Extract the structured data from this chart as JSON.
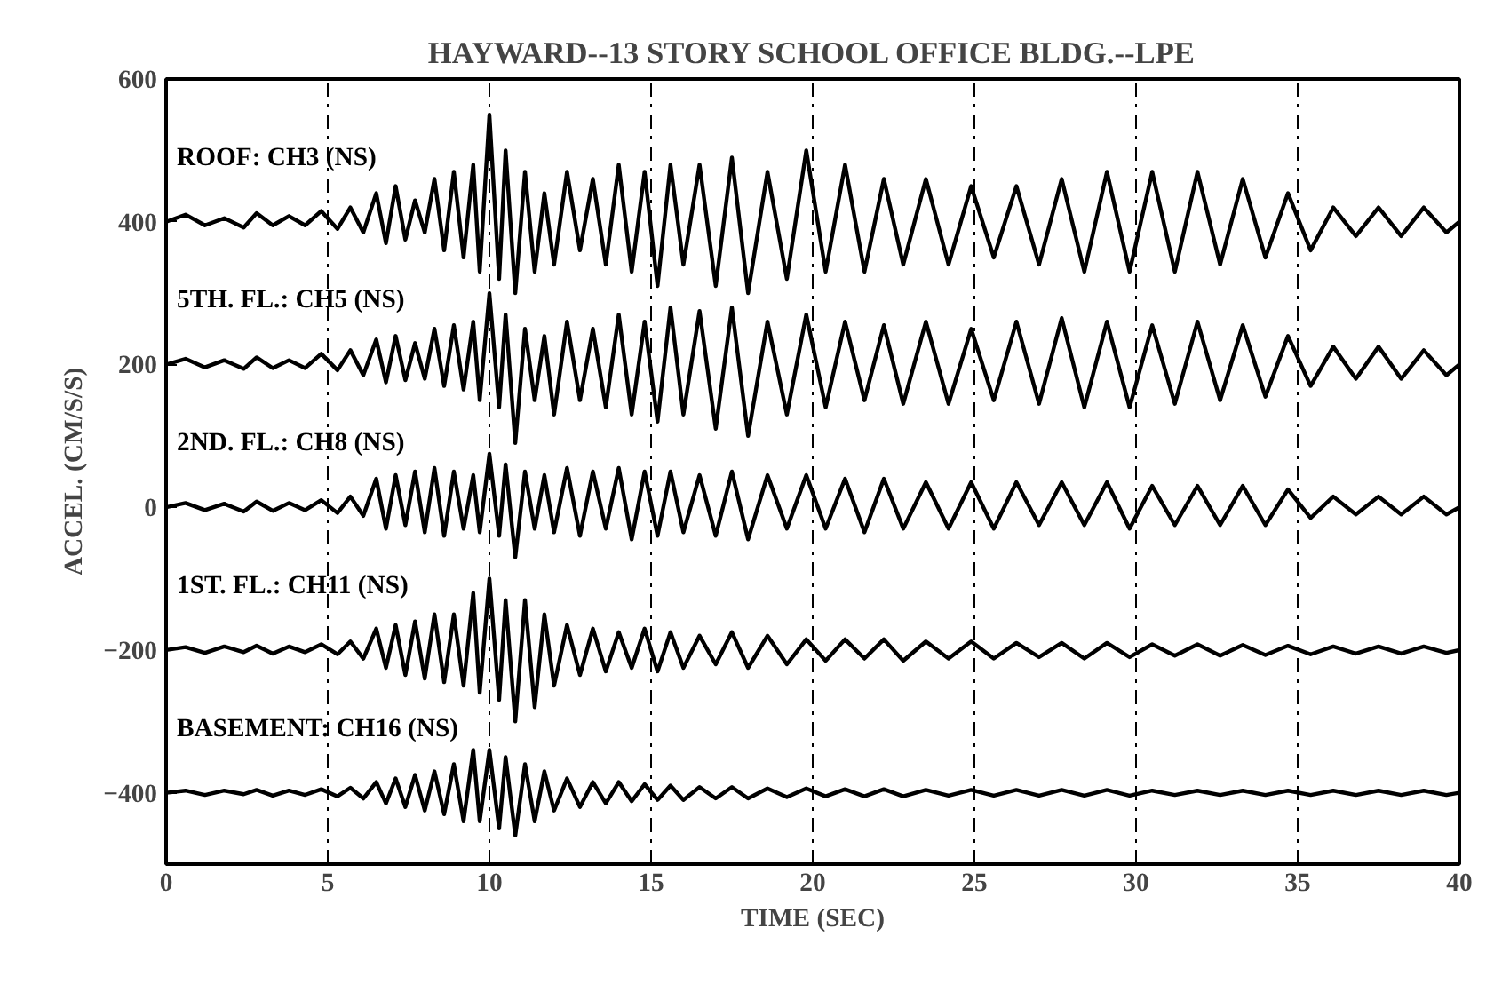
{
  "chart_data": {
    "type": "line",
    "title": "HAYWARD--13 STORY SCHOOL OFFICE BLDG.--LPE",
    "xlabel": "TIME (SEC)",
    "ylabel": "ACCEL. (CM/S/S)",
    "xlim": [
      0,
      40
    ],
    "ylim": [
      -500,
      600
    ],
    "xticks": [
      0,
      5,
      10,
      15,
      20,
      25,
      30,
      35,
      40
    ],
    "yticks": [
      -400,
      -200,
      0,
      200,
      400,
      600
    ],
    "grid": "x",
    "legend": false,
    "series": [
      {
        "name": "ROOF: CH3 (NS)",
        "color": "#000000",
        "x": [
          0,
          0.6,
          1.2,
          1.8,
          2.4,
          2.8,
          3.3,
          3.8,
          4.3,
          4.8,
          5.3,
          5.7,
          6.1,
          6.5,
          6.8,
          7.1,
          7.4,
          7.7,
          8.0,
          8.3,
          8.6,
          8.9,
          9.2,
          9.5,
          9.7,
          10.0,
          10.3,
          10.5,
          10.8,
          11.1,
          11.4,
          11.7,
          12.0,
          12.4,
          12.8,
          13.2,
          13.6,
          14.0,
          14.4,
          14.8,
          15.2,
          15.6,
          16.0,
          16.5,
          17.0,
          17.5,
          18.0,
          18.6,
          19.2,
          19.8,
          20.4,
          21.0,
          21.6,
          22.2,
          22.8,
          23.5,
          24.2,
          24.9,
          25.6,
          26.3,
          27.0,
          27.7,
          28.4,
          29.1,
          29.8,
          30.5,
          31.2,
          31.9,
          32.6,
          33.3,
          34.0,
          34.7,
          35.4,
          36.1,
          36.8,
          37.5,
          38.2,
          38.9,
          39.6,
          40
        ],
        "values": [
          400,
          410,
          395,
          405,
          392,
          412,
          395,
          408,
          395,
          415,
          390,
          420,
          385,
          440,
          370,
          450,
          375,
          430,
          385,
          460,
          360,
          470,
          350,
          480,
          330,
          550,
          320,
          500,
          300,
          470,
          330,
          440,
          340,
          470,
          360,
          460,
          340,
          480,
          330,
          470,
          310,
          480,
          340,
          480,
          310,
          490,
          300,
          470,
          320,
          500,
          330,
          480,
          330,
          460,
          340,
          460,
          340,
          450,
          350,
          450,
          340,
          460,
          330,
          470,
          330,
          470,
          330,
          470,
          340,
          460,
          350,
          440,
          360,
          420,
          380,
          420,
          380,
          420,
          385,
          400
        ]
      },
      {
        "name": "5TH. FL.: CH5 (NS)",
        "color": "#000000",
        "x": [
          0,
          0.6,
          1.2,
          1.8,
          2.4,
          2.8,
          3.3,
          3.8,
          4.3,
          4.8,
          5.3,
          5.7,
          6.1,
          6.5,
          6.8,
          7.1,
          7.4,
          7.7,
          8.0,
          8.3,
          8.6,
          8.9,
          9.2,
          9.5,
          9.7,
          10.0,
          10.3,
          10.5,
          10.8,
          11.1,
          11.4,
          11.7,
          12.0,
          12.4,
          12.8,
          13.2,
          13.6,
          14.0,
          14.4,
          14.8,
          15.2,
          15.6,
          16.0,
          16.5,
          17.0,
          17.5,
          18.0,
          18.6,
          19.2,
          19.8,
          20.4,
          21.0,
          21.6,
          22.2,
          22.8,
          23.5,
          24.2,
          24.9,
          25.6,
          26.3,
          27.0,
          27.7,
          28.4,
          29.1,
          29.8,
          30.5,
          31.2,
          31.9,
          32.6,
          33.3,
          34.0,
          34.7,
          35.4,
          36.1,
          36.8,
          37.5,
          38.2,
          38.9,
          39.6,
          40
        ],
        "values": [
          200,
          208,
          196,
          206,
          194,
          210,
          195,
          206,
          195,
          215,
          192,
          220,
          185,
          235,
          175,
          240,
          178,
          230,
          180,
          250,
          170,
          255,
          165,
          260,
          150,
          300,
          140,
          270,
          90,
          250,
          150,
          240,
          130,
          260,
          150,
          250,
          140,
          270,
          130,
          260,
          120,
          280,
          130,
          275,
          110,
          280,
          100,
          260,
          130,
          270,
          140,
          260,
          150,
          255,
          145,
          260,
          145,
          250,
          150,
          260,
          145,
          265,
          140,
          260,
          140,
          255,
          145,
          260,
          150,
          255,
          155,
          240,
          170,
          225,
          180,
          225,
          180,
          220,
          185,
          200
        ]
      },
      {
        "name": "2ND. FL.: CH8 (NS)",
        "color": "#000000",
        "x": [
          0,
          0.6,
          1.2,
          1.8,
          2.4,
          2.8,
          3.3,
          3.8,
          4.3,
          4.8,
          5.3,
          5.7,
          6.1,
          6.5,
          6.8,
          7.1,
          7.4,
          7.7,
          8.0,
          8.3,
          8.6,
          8.9,
          9.2,
          9.5,
          9.7,
          10.0,
          10.3,
          10.5,
          10.8,
          11.1,
          11.4,
          11.7,
          12.0,
          12.4,
          12.8,
          13.2,
          13.6,
          14.0,
          14.4,
          14.8,
          15.2,
          15.6,
          16.0,
          16.5,
          17.0,
          17.5,
          18.0,
          18.6,
          19.2,
          19.8,
          20.4,
          21.0,
          21.6,
          22.2,
          22.8,
          23.5,
          24.2,
          24.9,
          25.6,
          26.3,
          27.0,
          27.7,
          28.4,
          29.1,
          29.8,
          30.5,
          31.2,
          31.9,
          32.6,
          33.3,
          34.0,
          34.7,
          35.4,
          36.1,
          36.8,
          37.5,
          38.2,
          38.9,
          39.6,
          40
        ],
        "values": [
          0,
          6,
          -4,
          5,
          -6,
          8,
          -5,
          6,
          -4,
          10,
          -8,
          15,
          -12,
          40,
          -30,
          45,
          -25,
          50,
          -35,
          55,
          -40,
          50,
          -30,
          45,
          -35,
          75,
          -40,
          60,
          -70,
          50,
          -30,
          45,
          -35,
          55,
          -40,
          50,
          -30,
          55,
          -45,
          50,
          -40,
          50,
          -35,
          45,
          -40,
          50,
          -45,
          45,
          -30,
          45,
          -30,
          40,
          -35,
          40,
          -30,
          35,
          -30,
          35,
          -30,
          35,
          -25,
          35,
          -25,
          35,
          -30,
          30,
          -25,
          30,
          -25,
          30,
          -25,
          25,
          -15,
          15,
          -10,
          15,
          -10,
          15,
          -10,
          0
        ]
      },
      {
        "name": "1ST. FL.: CH11 (NS)",
        "color": "#000000",
        "x": [
          0,
          0.6,
          1.2,
          1.8,
          2.4,
          2.8,
          3.3,
          3.8,
          4.3,
          4.8,
          5.3,
          5.7,
          6.1,
          6.5,
          6.8,
          7.1,
          7.4,
          7.7,
          8.0,
          8.3,
          8.6,
          8.9,
          9.2,
          9.5,
          9.7,
          10.0,
          10.3,
          10.5,
          10.8,
          11.1,
          11.4,
          11.7,
          12.0,
          12.4,
          12.8,
          13.2,
          13.6,
          14.0,
          14.4,
          14.8,
          15.2,
          15.6,
          16.0,
          16.5,
          17.0,
          17.5,
          18.0,
          18.6,
          19.2,
          19.8,
          20.4,
          21.0,
          21.6,
          22.2,
          22.8,
          23.5,
          24.2,
          24.9,
          25.6,
          26.3,
          27.0,
          27.7,
          28.4,
          29.1,
          29.8,
          30.5,
          31.2,
          31.9,
          32.6,
          33.3,
          34.0,
          34.7,
          35.4,
          36.1,
          36.8,
          37.5,
          38.2,
          38.9,
          39.6,
          40
        ],
        "values": [
          -200,
          -196,
          -204,
          -195,
          -203,
          -194,
          -205,
          -195,
          -203,
          -192,
          -206,
          -188,
          -212,
          -170,
          -225,
          -165,
          -235,
          -160,
          -240,
          -150,
          -245,
          -150,
          -250,
          -120,
          -260,
          -100,
          -270,
          -130,
          -300,
          -130,
          -280,
          -150,
          -250,
          -165,
          -235,
          -170,
          -230,
          -175,
          -225,
          -170,
          -230,
          -175,
          -225,
          -180,
          -220,
          -175,
          -225,
          -180,
          -220,
          -185,
          -215,
          -185,
          -212,
          -185,
          -215,
          -188,
          -212,
          -188,
          -212,
          -190,
          -210,
          -190,
          -212,
          -190,
          -210,
          -192,
          -208,
          -192,
          -208,
          -193,
          -207,
          -194,
          -206,
          -195,
          -205,
          -195,
          -205,
          -195,
          -204,
          -200
        ]
      },
      {
        "name": "BASEMENT: CH16 (NS)",
        "color": "#000000",
        "x": [
          0,
          0.6,
          1.2,
          1.8,
          2.4,
          2.8,
          3.3,
          3.8,
          4.3,
          4.8,
          5.3,
          5.7,
          6.1,
          6.5,
          6.8,
          7.1,
          7.4,
          7.7,
          8.0,
          8.3,
          8.6,
          8.9,
          9.2,
          9.5,
          9.7,
          10.0,
          10.3,
          10.5,
          10.8,
          11.1,
          11.4,
          11.7,
          12.0,
          12.4,
          12.8,
          13.2,
          13.6,
          14.0,
          14.4,
          14.8,
          15.2,
          15.6,
          16.0,
          16.5,
          17.0,
          17.5,
          18.0,
          18.6,
          19.2,
          19.8,
          20.4,
          21.0,
          21.6,
          22.2,
          22.8,
          23.5,
          24.2,
          24.9,
          25.6,
          26.3,
          27.0,
          27.7,
          28.4,
          29.1,
          29.8,
          30.5,
          31.2,
          31.9,
          32.6,
          33.3,
          34.0,
          34.7,
          35.4,
          36.1,
          36.8,
          37.5,
          38.2,
          38.9,
          39.6,
          40
        ],
        "values": [
          -400,
          -397,
          -403,
          -397,
          -402,
          -396,
          -404,
          -397,
          -403,
          -395,
          -405,
          -393,
          -408,
          -385,
          -415,
          -380,
          -420,
          -375,
          -425,
          -370,
          -430,
          -360,
          -440,
          -340,
          -440,
          -340,
          -450,
          -350,
          -460,
          -360,
          -440,
          -370,
          -425,
          -380,
          -420,
          -385,
          -415,
          -385,
          -412,
          -388,
          -410,
          -390,
          -410,
          -392,
          -408,
          -392,
          -408,
          -394,
          -406,
          -394,
          -405,
          -395,
          -405,
          -395,
          -405,
          -396,
          -404,
          -396,
          -404,
          -396,
          -404,
          -396,
          -404,
          -396,
          -404,
          -397,
          -403,
          -397,
          -403,
          -397,
          -403,
          -397,
          -403,
          -397,
          -403,
          -397,
          -403,
          -397,
          -403,
          -400
        ]
      }
    ]
  }
}
